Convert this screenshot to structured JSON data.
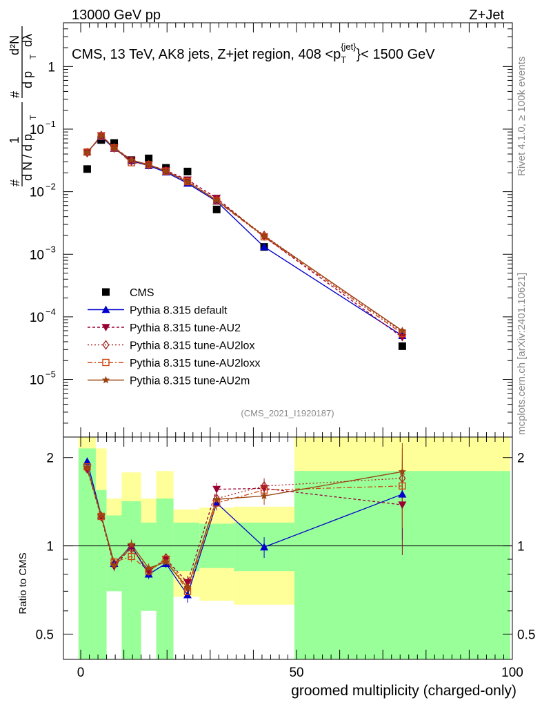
{
  "header": {
    "left": "13000 GeV pp",
    "right": "Z+Jet"
  },
  "side_text": {
    "top": "Rivet 4.1.0, ≥ 100k events",
    "bottom": "mcplots.cern.ch [arXiv:2401.10621]"
  },
  "chart_data": [
    {
      "type": "scatter",
      "panel": "main",
      "title_parts": [
        "CMS, 13 TeV, AK8 jets, Z+jet region, 408 <p",
        "T",
        "{jet}",
        "}< 1500 GeV"
      ],
      "ylabel": "1/(dN/dpT) d²N/(dpT dλ)",
      "ylabel_parts": {
        "lead": "#",
        "one": "1",
        "dn": "d N / d p",
        "t1": "T",
        "hash2": "#",
        "d2n": "d²N",
        "dpt": "d p",
        "t2": "T",
        "dlambda": "dλ"
      },
      "yscale": "log",
      "ylim": [
        1.2e-06,
        5
      ],
      "xlim": [
        -4,
        100
      ],
      "y_ticks": [
        {
          "v": 1,
          "base": "1",
          "exp": ""
        },
        {
          "v": 0.1,
          "base": "10",
          "exp": "−1"
        },
        {
          "v": 0.01,
          "base": "10",
          "exp": "−2"
        },
        {
          "v": 0.001,
          "base": "10",
          "exp": "−3"
        },
        {
          "v": 0.0001,
          "base": "10",
          "exp": "−4"
        },
        {
          "v": 1e-05,
          "base": "10",
          "exp": "−5"
        }
      ],
      "watermark": "(CMS_2021_I1920187)",
      "legend": [
        {
          "label": "CMS",
          "color": "#000000",
          "marker": "square",
          "dash": ""
        },
        {
          "label": "Pythia 8.315 default",
          "color": "#0000cc",
          "marker": "triangle-up",
          "dash": ""
        },
        {
          "label": "Pythia 8.315 tune-AU2",
          "color": "#990033",
          "marker": "triangle-down",
          "dash": "4,3"
        },
        {
          "label": "Pythia 8.315 tune-AU2lox",
          "color": "#aa2222",
          "marker": "diamond-open",
          "dash": "2,3"
        },
        {
          "label": "Pythia 8.315 tune-AU2loxx",
          "color": "#cc4411",
          "marker": "square-open",
          "dash": "7,3,2,3"
        },
        {
          "label": "Pythia 8.315 tune-AU2m",
          "color": "#994411",
          "marker": "star",
          "dash": ""
        }
      ],
      "x": [
        1.5,
        4.75,
        7.75,
        11.75,
        15.75,
        19.75,
        24.75,
        31.5,
        42.5,
        74.5
      ],
      "series": [
        {
          "name": "CMS",
          "values": [
            0.023,
            0.067,
            0.06,
            0.032,
            0.034,
            0.024,
            0.021,
            0.0052,
            0.00131,
            3.4e-05
          ]
        },
        {
          "name": "Pythia 8.315 default",
          "values": [
            0.043,
            0.075,
            0.049,
            0.031,
            0.026,
            0.0205,
            0.0136,
            0.007,
            0.00131,
            5e-05
          ]
        },
        {
          "name": "Pythia 8.315 tune-AU2",
          "values": [
            0.042,
            0.079,
            0.051,
            0.032,
            0.027,
            0.0218,
            0.0155,
            0.0079,
            0.0019,
            4.7e-05
          ]
        },
        {
          "name": "Pythia 8.315 tune-AU2lox",
          "values": [
            0.042,
            0.079,
            0.05,
            0.031,
            0.027,
            0.0215,
            0.0148,
            0.0074,
            0.002,
            5.7e-05
          ]
        },
        {
          "name": "Pythia 8.315 tune-AU2loxx",
          "values": [
            0.043,
            0.077,
            0.05,
            0.029,
            0.027,
            0.0212,
            0.0145,
            0.0071,
            0.0019,
            5.4e-05
          ]
        },
        {
          "name": "Pythia 8.315 tune-AU2m",
          "values": [
            0.042,
            0.078,
            0.05,
            0.032,
            0.027,
            0.0212,
            0.0143,
            0.0073,
            0.00195,
            6e-05
          ]
        }
      ]
    },
    {
      "type": "scatter",
      "panel": "ratio",
      "ylabel": "Ratio to CMS",
      "yscale": "log",
      "ylim": [
        0.41,
        2.35
      ],
      "xlim": [
        -4,
        100
      ],
      "xlabel": "groomed multiplicity (charged-only)",
      "x_ticks": [
        0,
        50,
        100
      ],
      "y_ticks": [
        0.5,
        1,
        2
      ],
      "bands": [
        {
          "x0": -0.5,
          "x1": 3.5,
          "yellow": [
            0.3,
            2.5
          ],
          "green": [
            0.3,
            2.15
          ]
        },
        {
          "x0": 3.5,
          "x1": 6,
          "yellow": [
            0.3,
            2.15
          ],
          "green": [
            0.3,
            1.55
          ]
        },
        {
          "x0": 6,
          "x1": 9.5,
          "yellow": [
            0.3,
            1.45
          ],
          "green": [
            0.3,
            1.27
          ]
        },
        {
          "x0": 9.5,
          "x1": 14,
          "yellow": [
            0.3,
            1.78
          ],
          "green": [
            0.3,
            1.42
          ]
        },
        {
          "x0": 14,
          "x1": 17.5,
          "yellow": [
            0.3,
            1.45
          ],
          "green": [
            0.3,
            1.2
          ]
        },
        {
          "x0": 17.5,
          "x1": 21.5,
          "yellow": [
            0.3,
            1.8
          ],
          "green": [
            0.3,
            1.45
          ]
        },
        {
          "x0": 21.5,
          "x1": 27.5,
          "yellow": [
            0.67,
            1.33
          ],
          "green": [
            0.82,
            1.2
          ]
        },
        {
          "x0": 27.5,
          "x1": 35.5,
          "yellow": [
            0.65,
            1.35
          ],
          "green": [
            0.84,
            1.19
          ]
        },
        {
          "x0": 35.5,
          "x1": 49.5,
          "yellow": [
            0.63,
            1.36
          ],
          "green": [
            0.82,
            1.2
          ]
        },
        {
          "x0": 49.5,
          "x1": 99.5,
          "yellow": [
            0.3,
            2.5
          ],
          "green": [
            0.3,
            1.8
          ]
        }
      ],
      "band_gaps": [
        {
          "x0": 6,
          "x1": 9.5,
          "lo": 0.3,
          "hi": 0.7
        },
        {
          "x0": 14,
          "x1": 17.5,
          "lo": 0.3,
          "hi": 0.6
        },
        {
          "x0": 21.5,
          "x1": 27.5,
          "lo": 0.3,
          "hi": 0.67
        },
        {
          "x0": 35.5,
          "x1": 49.5,
          "lo": 0.3,
          "hi": 0.6
        }
      ],
      "series": [
        {
          "name": "Pythia 8.315 default",
          "x": [
            1.5,
            4.75,
            7.75,
            11.75,
            15.75,
            19.75,
            24.75,
            31.5,
            42.5,
            74.5
          ],
          "values": [
            1.94,
            1.27,
            0.87,
            1.0,
            0.8,
            0.87,
            0.68,
            1.4,
            0.99,
            1.5
          ],
          "err": [
            0.06,
            0.03,
            0.03,
            0.04,
            0.03,
            0.03,
            0.04,
            0.07,
            0.08,
            0.45
          ]
        },
        {
          "name": "Pythia 8.315 tune-AU2",
          "x": [
            1.5,
            4.75,
            7.75,
            11.75,
            15.75,
            19.75,
            24.75,
            31.5,
            42.5,
            74.5
          ],
          "values": [
            1.83,
            1.25,
            0.85,
            0.99,
            0.82,
            0.9,
            0.75,
            1.56,
            1.57,
            1.38
          ],
          "err": [
            0.06,
            0.03,
            0.03,
            0.04,
            0.03,
            0.03,
            0.04,
            0.08,
            0.1,
            0.45
          ]
        },
        {
          "name": "Pythia 8.315 tune-AU2lox",
          "x": [
            1.5,
            4.75,
            7.75,
            11.75,
            15.75,
            19.75,
            24.75,
            31.5,
            42.5,
            74.5
          ],
          "values": [
            1.83,
            1.26,
            0.87,
            0.98,
            0.82,
            0.91,
            0.72,
            1.45,
            1.6,
            1.7
          ],
          "err": [
            0.06,
            0.03,
            0.03,
            0.04,
            0.03,
            0.03,
            0.04,
            0.08,
            0.1,
            0.45
          ]
        },
        {
          "name": "Pythia 8.315 tune-AU2loxx",
          "x": [
            1.5,
            4.75,
            7.75,
            11.75,
            15.75,
            19.75,
            24.75,
            31.5,
            42.5,
            74.5
          ],
          "values": [
            1.86,
            1.26,
            0.88,
            0.92,
            0.82,
            0.9,
            0.7,
            1.4,
            1.55,
            1.6
          ],
          "err": [
            0.06,
            0.03,
            0.03,
            0.04,
            0.03,
            0.03,
            0.04,
            0.08,
            0.1,
            0.45
          ]
        },
        {
          "name": "Pythia 8.315 tune-AU2m",
          "x": [
            1.5,
            4.75,
            7.75,
            11.75,
            15.75,
            19.75,
            24.75,
            31.5,
            42.5,
            74.5
          ],
          "values": [
            1.85,
            1.27,
            0.86,
            1.01,
            0.84,
            0.88,
            0.72,
            1.44,
            1.48,
            1.79
          ],
          "err": [
            0.06,
            0.03,
            0.03,
            0.04,
            0.03,
            0.03,
            0.04,
            0.08,
            0.1,
            0.45
          ]
        }
      ]
    }
  ]
}
